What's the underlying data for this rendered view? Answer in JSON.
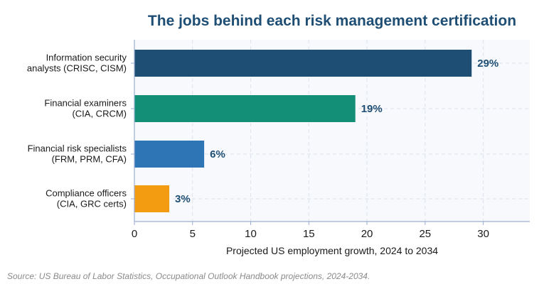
{
  "chart_data": {
    "type": "bar",
    "orientation": "horizontal",
    "title": "The jobs behind each risk management certification",
    "xlabel": "Projected US employment growth, 2024 to 2034",
    "ylabel": "",
    "xlim": [
      0,
      34
    ],
    "xticks": [
      0,
      5,
      10,
      15,
      20,
      25,
      30
    ],
    "grid": true,
    "categories": [
      [
        "Information security",
        "analysts (CRISC, CISM)"
      ],
      [
        "Financial examiners",
        "(CIA, CRCM)"
      ],
      [
        "Financial risk specialists",
        "(FRM, PRM, CFA)"
      ],
      [
        "Compliance officers",
        "(CIA, GRC certs)"
      ]
    ],
    "values": [
      29,
      19,
      6,
      3
    ],
    "value_labels": [
      "29%",
      "19%",
      "6%",
      "3%"
    ],
    "colors": [
      "#1f4e74",
      "#148f77",
      "#2e75b6",
      "#f39c12"
    ],
    "source": "Source: US Bureau of Labor Statistics, Occupational Outlook Handbook projections, 2024-2034."
  },
  "colors": {
    "title": "#1f4e74",
    "value_label": "#1f4e74",
    "plot_background": "#f7f9fc",
    "grid": "#dde3ec",
    "axis": "#9aaed0",
    "source": "#8a8a8a"
  }
}
